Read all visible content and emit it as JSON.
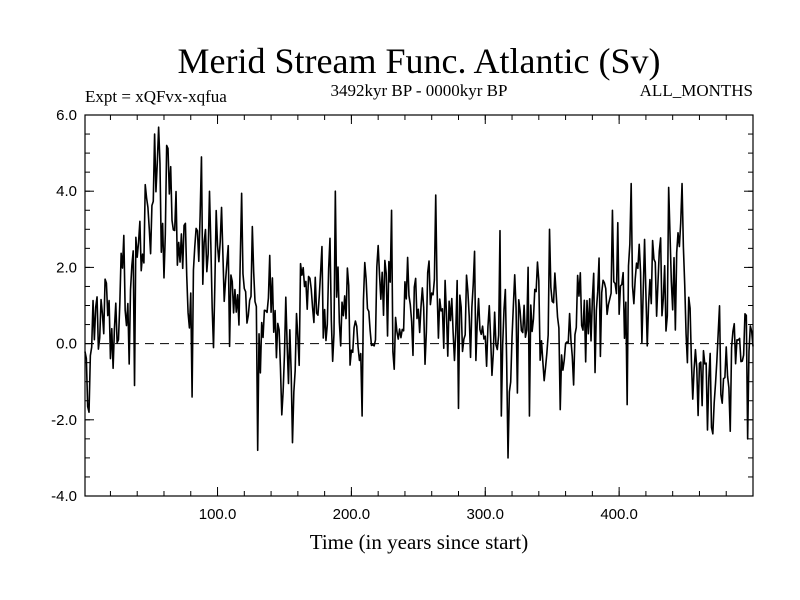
{
  "chart_data": {
    "type": "line",
    "title": "Merid Stream Func. Atlantic (Sv)",
    "subtitle_left": "Expt = xQFvx-xqfua",
    "subtitle_center": "3492kyr BP - 0000kyr BP",
    "subtitle_right": "ALL_MONTHS",
    "xlabel": "Time (in years since start)",
    "ylabel": "",
    "xlim": [
      1,
      500
    ],
    "ylim": [
      -4.0,
      6.0
    ],
    "xticks": [
      100,
      200,
      300,
      400
    ],
    "xtick_labels": [
      "100.0",
      "200.0",
      "300.0",
      "400.0"
    ],
    "yticks": [
      -4.0,
      -2.0,
      0.0,
      2.0,
      4.0,
      6.0
    ],
    "ytick_labels": [
      "-4.0",
      "-2.0",
      "0.0",
      "2.0",
      "4.0",
      "6.0"
    ],
    "reference_line": {
      "y": 0.0,
      "style": "dashed"
    },
    "grid": false,
    "anchors": {
      "x": [
        1,
        5,
        10,
        15,
        20,
        25,
        30,
        35,
        40,
        45,
        50,
        55,
        60,
        65,
        70,
        75,
        80,
        85,
        90,
        95,
        100,
        105,
        110,
        115,
        120,
        125,
        130,
        135,
        140,
        145,
        150,
        155,
        160,
        165,
        170,
        175,
        180,
        185,
        190,
        195,
        200,
        205,
        210,
        215,
        220,
        225,
        230,
        235,
        240,
        245,
        250,
        255,
        260,
        265,
        270,
        275,
        280,
        285,
        290,
        295,
        300,
        305,
        310,
        315,
        320,
        325,
        330,
        335,
        340,
        345,
        350,
        355,
        360,
        365,
        370,
        375,
        380,
        385,
        390,
        395,
        400,
        405,
        410,
        415,
        420,
        425,
        430,
        435,
        440,
        445,
        450,
        455,
        460,
        465,
        470,
        475,
        480,
        485,
        490,
        495,
        500
      ],
      "y": [
        -0.5,
        0.0,
        0.4,
        1.0,
        0.8,
        0.7,
        1.5,
        1.6,
        2.1,
        2.8,
        3.2,
        3.5,
        3.3,
        3.0,
        2.8,
        2.5,
        2.3,
        2.4,
        2.5,
        2.6,
        2.5,
        2.2,
        2.1,
        2.0,
        1.6,
        1.2,
        0.5,
        0.2,
        0.4,
        0.2,
        -0.1,
        0.2,
        0.7,
        1.0,
        1.1,
        1.0,
        0.8,
        0.7,
        0.7,
        0.6,
        0.6,
        0.7,
        0.8,
        0.9,
        0.8,
        0.7,
        0.8,
        0.9,
        0.9,
        1.0,
        1.1,
        1.2,
        1.2,
        1.1,
        1.0,
        0.9,
        0.8,
        0.8,
        0.9,
        0.8,
        0.7,
        0.6,
        0.6,
        0.5,
        0.4,
        0.5,
        0.6,
        0.7,
        0.8,
        0.8,
        0.7,
        0.6,
        0.5,
        0.6,
        0.8,
        1.0,
        1.3,
        1.5,
        1.6,
        1.7,
        1.8,
        1.9,
        1.8,
        1.6,
        1.7,
        1.9,
        2.0,
        2.2,
        2.4,
        2.2,
        1.0,
        0.0,
        -0.8,
        -0.9,
        -0.9,
        -0.9,
        -0.8,
        -0.7,
        -0.5,
        -0.4,
        -0.3
      ]
    },
    "noise": {
      "seed": 1234,
      "amplitude_sv": 0.85
    },
    "spikes": {
      "x": [
        4,
        38,
        53,
        62,
        81,
        88,
        130,
        156,
        188,
        208,
        230,
        263,
        280,
        312,
        317,
        333,
        348,
        395,
        406,
        409,
        437,
        447,
        451,
        469,
        483,
        496
      ],
      "y": [
        -1.8,
        -1.1,
        5.5,
        5.2,
        -1.4,
        4.9,
        -2.8,
        -2.6,
        4.0,
        -1.9,
        3.5,
        3.9,
        -1.7,
        -1.9,
        -3.0,
        -1.9,
        3.0,
        3.5,
        -1.6,
        4.2,
        4.1,
        4.2,
        -0.5,
        -2.2,
        -2.3,
        -2.5
      ]
    }
  }
}
